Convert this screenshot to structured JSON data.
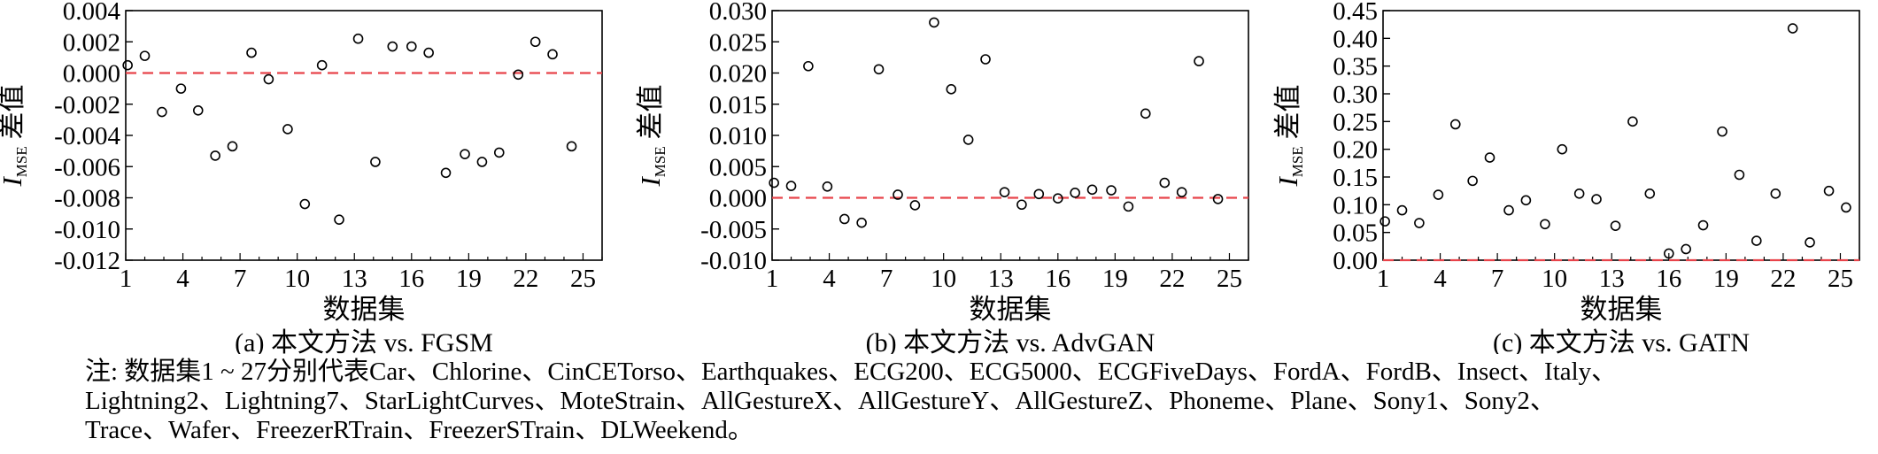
{
  "x_axis_label": "数据集",
  "y_axis_label_main": "I",
  "y_axis_label_sub": "MSE",
  "y_axis_label_suffix": " 差值",
  "note_lines": [
    "注: 数据集1 ~ 27分别代表Car、Chlorine、CinCETorso、Earthquakes、ECG200、ECG5000、ECGFiveDays、FordA、FordB、Insect、Italy、",
    "Lightning2、Lightning7、StarLightCurves、MoteStrain、AllGestureX、AllGestureY、AllGestureZ、Phoneme、Plane、Sony1、Sony2、",
    "Trace、Wafer、FreezerRTrain、FreezerSTrain、DLWeekend。"
  ],
  "colors": {
    "points": "#000000",
    "reference_line": "#e8434a",
    "axes": "#000000"
  },
  "chart_data": [
    {
      "type": "scatter",
      "caption": "(a) 本文方法 vs. FGSM",
      "xlabel": "数据集",
      "ylabel": "I_MSE 差值",
      "xlim": [
        1,
        26
      ],
      "ylim": [
        -0.012,
        0.004
      ],
      "xticks": [
        1,
        4,
        7,
        10,
        13,
        16,
        19,
        22,
        25
      ],
      "yticks": [
        -0.012,
        -0.01,
        -0.008,
        -0.006,
        -0.004,
        -0.002,
        0.0,
        0.002,
        0.004
      ],
      "ytick_labels": [
        "-0.012",
        "-0.010",
        "-0.008",
        "-0.006",
        "-0.004",
        "-0.002",
        "0.000",
        "0.002",
        "0.004"
      ],
      "reference_line": 0,
      "x": [
        1.1,
        2.0,
        2.9,
        3.9,
        4.8,
        5.7,
        6.6,
        7.6,
        8.5,
        9.5,
        10.4,
        11.3,
        12.2,
        13.2,
        14.1,
        15.0,
        16.0,
        16.9,
        17.8,
        18.8,
        19.7,
        20.6,
        21.6,
        22.5,
        23.4,
        24.4,
        25.3
      ],
      "values": [
        0.0005,
        0.0011,
        -0.0025,
        -0.001,
        -0.0024,
        -0.0053,
        -0.0047,
        0.0013,
        -0.0004,
        -0.0036,
        -0.0084,
        0.0005,
        -0.0094,
        0.0022,
        -0.0057,
        0.0017,
        0.0017,
        0.0013,
        -0.0064,
        -0.0052,
        -0.0057,
        -0.0051,
        -0.0001,
        0.002,
        0.0012,
        -0.0047,
        null
      ]
    },
    {
      "type": "scatter",
      "caption": "(b) 本文方法 vs. AdvGAN",
      "xlabel": "数据集",
      "ylabel": "I_MSE 差值",
      "xlim": [
        1,
        26
      ],
      "ylim": [
        -0.01,
        0.03
      ],
      "xticks": [
        1,
        4,
        7,
        10,
        13,
        16,
        19,
        22,
        25
      ],
      "yticks": [
        -0.01,
        -0.005,
        0.0,
        0.005,
        0.01,
        0.015,
        0.02,
        0.025,
        0.03
      ],
      "ytick_labels": [
        "-0.010",
        "-0.005",
        "0.000",
        "0.005",
        "0.010",
        "0.015",
        "0.020",
        "0.025",
        "0.030"
      ],
      "reference_line": 0,
      "x": [
        1.1,
        2.0,
        2.9,
        3.9,
        4.8,
        5.7,
        6.6,
        7.6,
        8.5,
        9.5,
        10.4,
        11.3,
        12.2,
        13.2,
        14.1,
        15.0,
        16.0,
        16.9,
        17.8,
        18.8,
        19.7,
        20.6,
        21.6,
        22.5,
        23.4,
        24.4,
        25.3
      ],
      "values": [
        0.0024,
        0.0019,
        0.0211,
        0.0018,
        -0.0034,
        -0.004,
        0.0206,
        0.0005,
        -0.0012,
        0.0281,
        0.0174,
        0.0093,
        0.0222,
        0.0009,
        -0.0011,
        0.0006,
        -0.0001,
        0.0008,
        0.0013,
        0.0012,
        -0.0014,
        0.0135,
        0.0024,
        0.0009,
        0.0219,
        -0.0002,
        null
      ]
    },
    {
      "type": "scatter",
      "caption": "(c) 本文方法 vs. GATN",
      "xlabel": "数据集",
      "ylabel": "I_MSE 差值",
      "xlim": [
        1,
        26
      ],
      "ylim": [
        0.0,
        0.45
      ],
      "xticks": [
        1,
        4,
        7,
        10,
        13,
        16,
        19,
        22,
        25
      ],
      "yticks": [
        0.0,
        0.05,
        0.1,
        0.15,
        0.2,
        0.25,
        0.3,
        0.35,
        0.4,
        0.45
      ],
      "ytick_labels": [
        "0.00",
        "0.05",
        "0.10",
        "0.15",
        "0.20",
        "0.25",
        "0.30",
        "0.35",
        "0.40",
        "0.45"
      ],
      "reference_line": 0,
      "x": [
        1.1,
        2.0,
        2.9,
        3.9,
        4.8,
        5.7,
        6.6,
        7.6,
        8.5,
        9.5,
        10.4,
        11.3,
        12.2,
        13.2,
        14.1,
        15.0,
        16.0,
        16.9,
        17.8,
        18.8,
        19.7,
        20.6,
        21.6,
        22.5,
        23.4,
        24.4,
        25.3
      ],
      "values": [
        0.07,
        0.09,
        0.067,
        0.118,
        0.245,
        0.143,
        0.185,
        0.09,
        0.108,
        0.065,
        0.2,
        0.12,
        0.11,
        0.062,
        0.25,
        0.12,
        0.012,
        0.02,
        0.063,
        0.232,
        0.154,
        0.035,
        0.12,
        0.418,
        0.032,
        0.125,
        0.095
      ]
    }
  ]
}
